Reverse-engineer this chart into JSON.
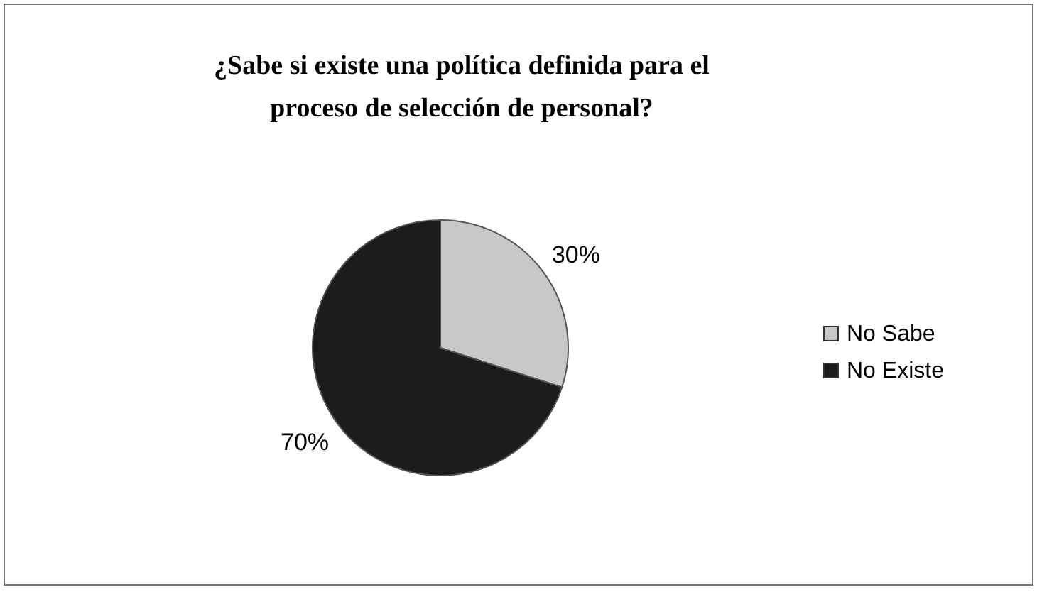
{
  "chart_data": {
    "type": "pie",
    "title": "¿Sabe si existe una política definida para el proceso de selección de personal?",
    "categories": [
      "No Sabe",
      "No Existe"
    ],
    "values": [
      30,
      70
    ],
    "colors": [
      "#c8c8c8",
      "#1c1c1c"
    ],
    "value_labels": [
      "30%",
      "70%"
    ],
    "legend": "right"
  }
}
